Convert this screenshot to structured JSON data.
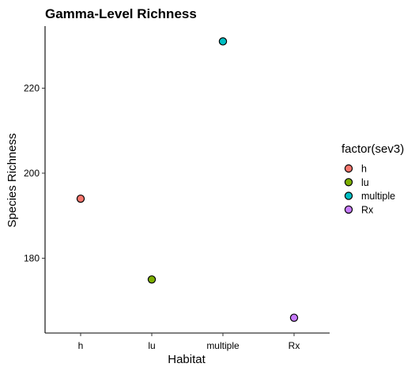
{
  "chart_data": {
    "type": "scatter",
    "title": "Gamma-Level Richness",
    "xlabel": "Habitat",
    "ylabel": "Species Richness",
    "categories": [
      "h",
      "lu",
      "multiple",
      "Rx"
    ],
    "values": [
      194,
      175,
      231,
      166
    ],
    "colors": [
      "#F8766D",
      "#7CAE00",
      "#00BFC4",
      "#C77CFF"
    ],
    "ylim": [
      162.4,
      234.6
    ],
    "yticks": [
      180,
      200,
      220
    ],
    "grid": false,
    "legend": {
      "title": "factor(sev3)",
      "entries": [
        "h",
        "lu",
        "multiple",
        "Rx"
      ],
      "placement": "right"
    }
  }
}
